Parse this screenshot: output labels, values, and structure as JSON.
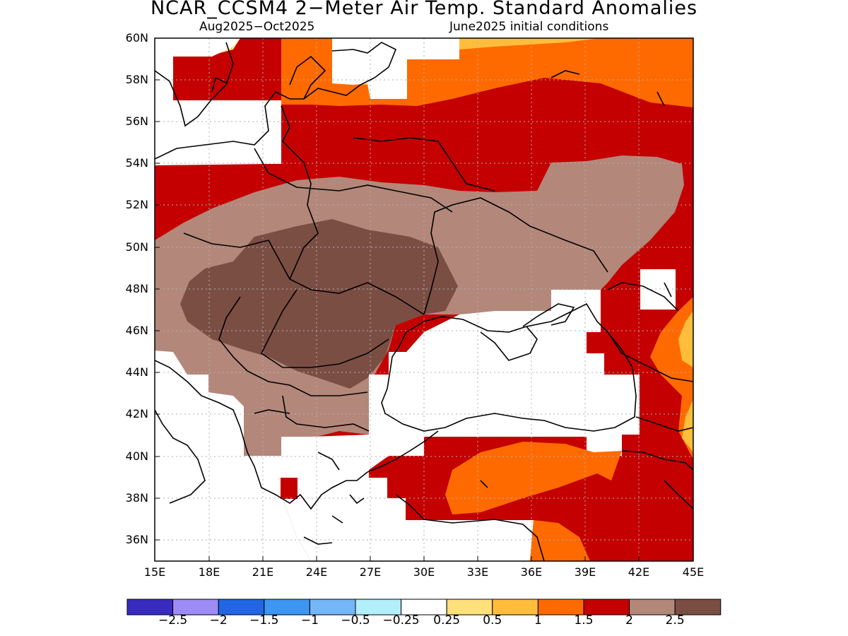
{
  "title": "NCAR_CCSM4 2−Meter Air Temp. Standard Anomalies",
  "subtitle_left": "Aug2025−Oct2025",
  "subtitle_right": "June2025 initial conditions",
  "map": {
    "lon_range": [
      15,
      45
    ],
    "lat_range": [
      35,
      60
    ],
    "lat_labels": [
      "60N",
      "58N",
      "56N",
      "54N",
      "52N",
      "50N",
      "48N",
      "46N",
      "44N",
      "42N",
      "40N",
      "38N",
      "36N"
    ],
    "lon_labels": [
      "15E",
      "18E",
      "21E",
      "24E",
      "27E",
      "30E",
      "33E",
      "36E",
      "39E",
      "42E",
      "45E"
    ],
    "grid": "dotted"
  },
  "colorbar": {
    "labels": [
      "−2.5",
      "−2",
      "−1.5",
      "−1",
      "−0.5",
      "−0.25",
      "0.25",
      "0.5",
      "1",
      "1.5",
      "2",
      "2.5"
    ],
    "colors": [
      "#3a2bc0",
      "#9d8cf5",
      "#2266e6",
      "#3d96f2",
      "#74b6f7",
      "#b3eefb",
      "#ffffff",
      "#ffe07a",
      "#ffbd3b",
      "#ff6a00",
      "#c40000",
      "#b3877a",
      "#7b4e44"
    ]
  }
}
